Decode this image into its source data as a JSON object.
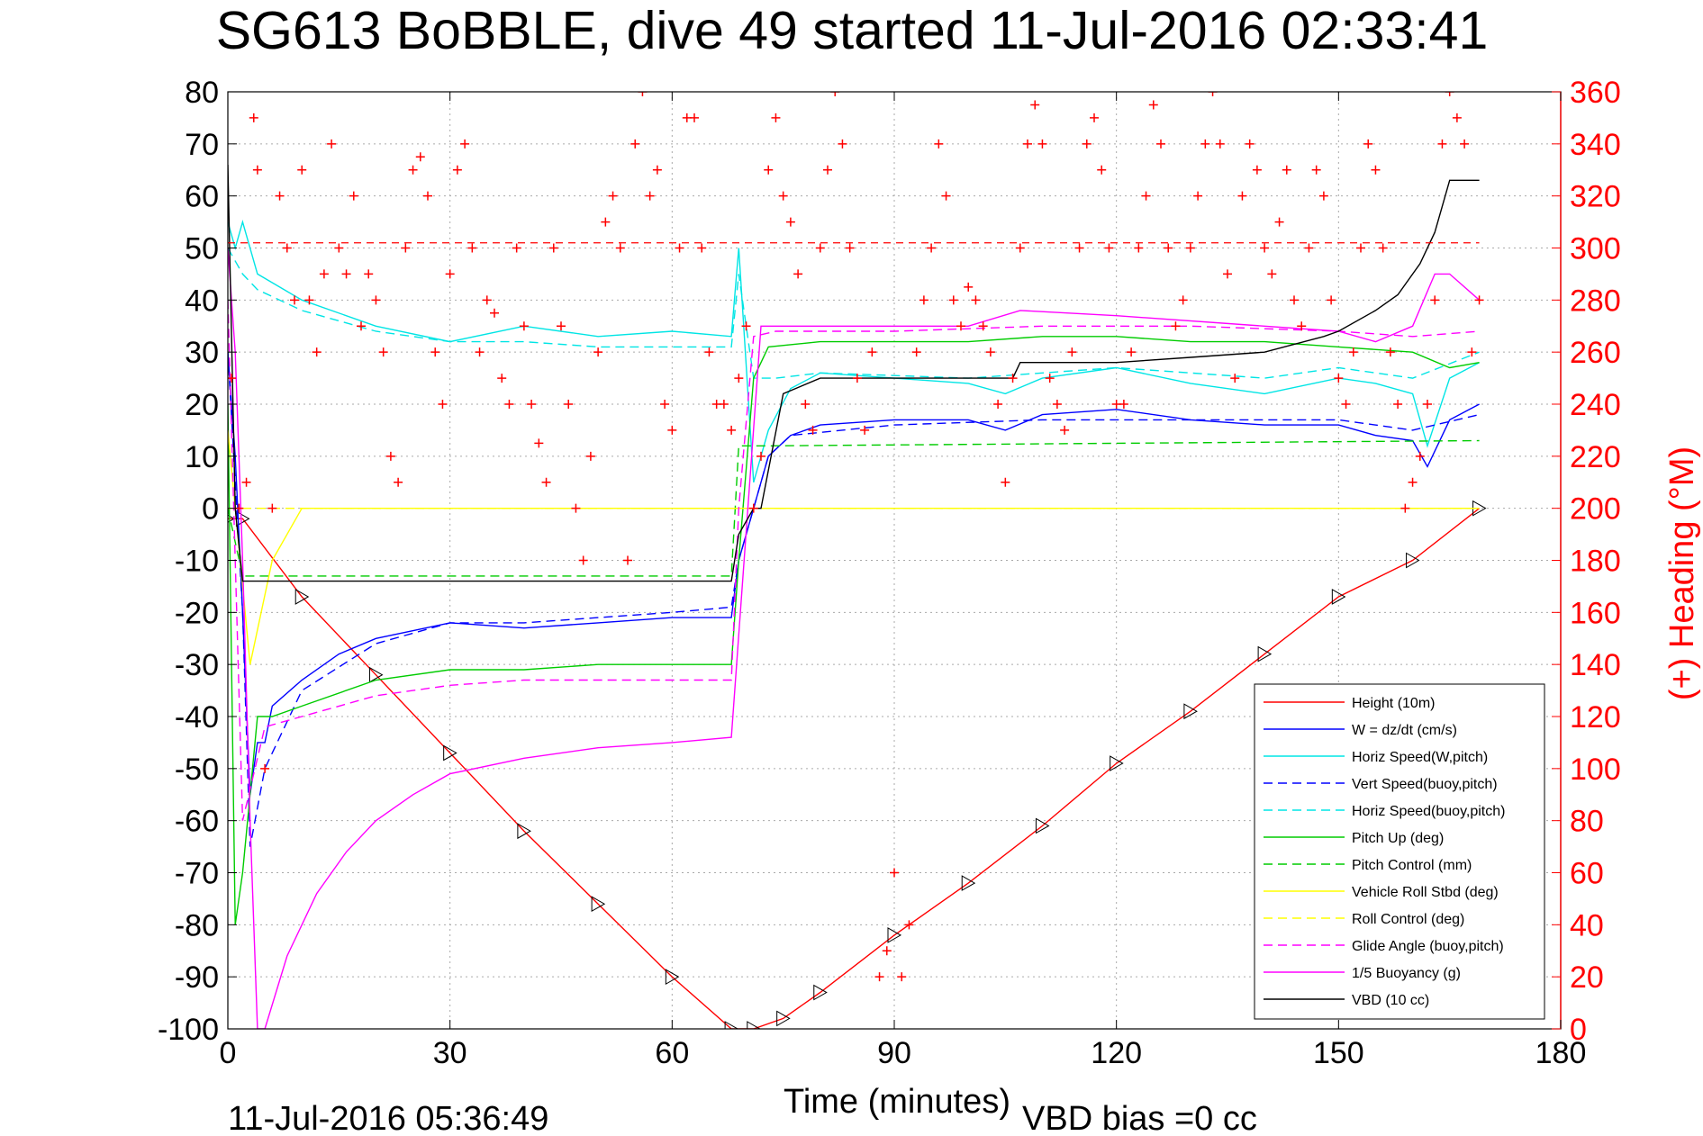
{
  "chart_data": {
    "type": "line",
    "title": "SG613 BoBBLE, dive 49 started 11-Jul-2016 02:33:41",
    "xlabel": "Time (minutes)",
    "ylabel": "",
    "y2label": "(+) Heading (°M)",
    "xlim": [
      0,
      180
    ],
    "ylim": [
      -100,
      80
    ],
    "y2lim": [
      0,
      360
    ],
    "xticks": [
      "0",
      "30",
      "60",
      "90",
      "120",
      "150",
      "180"
    ],
    "yticks": [
      "80",
      "70",
      "60",
      "50",
      "40",
      "30",
      "20",
      "10",
      "0",
      "-10",
      "-20",
      "-30",
      "-40",
      "-50",
      "-60",
      "-70",
      "-80",
      "-90",
      "-100"
    ],
    "y2ticks": [
      "360",
      "340",
      "320",
      "300",
      "280",
      "260",
      "240",
      "220",
      "200",
      "180",
      "160",
      "140",
      "120",
      "100",
      "80",
      "60",
      "40",
      "20",
      "0"
    ],
    "grid": true,
    "legend_position": "bottom-right",
    "footer_left": "11-Jul-2016 05:36:49",
    "footer_right": "VBD bias =0 cc",
    "series": [
      {
        "name": "Height (10m)",
        "color": "#ff0000",
        "style": "solid",
        "x": [
          0,
          2,
          10,
          20,
          30,
          40,
          50,
          60,
          68,
          71,
          75,
          80,
          90,
          100,
          110,
          120,
          130,
          140,
          150,
          160,
          169
        ],
        "y": [
          -2,
          -2,
          -17,
          -32,
          -47,
          -62,
          -76,
          -90,
          -100,
          -100,
          -98,
          -93,
          -82,
          -72,
          -61,
          -49,
          -39,
          -28,
          -17,
          -10,
          0
        ]
      },
      {
        "name": "W = dz/dt (cm/s)",
        "color": "#0000ff",
        "style": "solid",
        "x": [
          0,
          1,
          2,
          3,
          4,
          5,
          6,
          10,
          15,
          20,
          30,
          40,
          50,
          60,
          68,
          69,
          71,
          73,
          76,
          80,
          90,
          100,
          105,
          110,
          120,
          130,
          140,
          150,
          155,
          160,
          162,
          165,
          169
        ],
        "y": [
          30,
          10,
          -20,
          -55,
          -45,
          -45,
          -38,
          -33,
          -28,
          -25,
          -22,
          -23,
          -22,
          -21,
          -21,
          -10,
          0,
          10,
          14,
          16,
          17,
          17,
          15,
          18,
          19,
          17,
          16,
          16,
          14,
          13,
          8,
          17,
          20
        ]
      },
      {
        "name": "Horiz Speed(W,pitch)",
        "color": "#00e5e5",
        "style": "solid",
        "x": [
          0,
          1,
          2,
          4,
          10,
          20,
          30,
          40,
          50,
          60,
          68,
          69,
          71,
          73,
          76,
          80,
          90,
          100,
          105,
          110,
          120,
          130,
          140,
          150,
          155,
          160,
          162,
          165,
          169
        ],
        "y": [
          55,
          50,
          55,
          45,
          40,
          35,
          32,
          35,
          33,
          34,
          33,
          50,
          5,
          15,
          23,
          26,
          25,
          24,
          22,
          25,
          27,
          24,
          22,
          25,
          24,
          22,
          12,
          25,
          28
        ]
      },
      {
        "name": "Vert Speed(buoy,pitch)",
        "color": "#0000ff",
        "style": "dashed",
        "x": [
          0,
          2,
          3,
          5,
          10,
          20,
          30,
          40,
          50,
          60,
          68,
          69,
          71,
          73,
          76,
          90,
          110,
          130,
          150,
          160,
          169
        ],
        "y": [
          30,
          -20,
          -65,
          -50,
          -35,
          -26,
          -22,
          -22,
          -21,
          -20,
          -19,
          -10,
          0,
          10,
          14,
          16,
          17,
          17,
          17,
          15,
          18
        ]
      },
      {
        "name": "Horiz Speed(buoy,pitch)",
        "color": "#00e5e5",
        "style": "dashed",
        "x": [
          0,
          2,
          4,
          10,
          20,
          30,
          40,
          50,
          60,
          68,
          69,
          71,
          74,
          80,
          100,
          120,
          140,
          150,
          160,
          169
        ],
        "y": [
          50,
          45,
          42,
          38,
          34,
          32,
          32,
          31,
          31,
          31,
          45,
          25,
          25,
          26,
          25,
          27,
          25,
          27,
          25,
          30
        ]
      },
      {
        "name": "Pitch Up (deg)",
        "color": "#00cc00",
        "style": "solid",
        "x": [
          0,
          1,
          2,
          4,
          6,
          10,
          20,
          30,
          40,
          50,
          60,
          68,
          69,
          71,
          73,
          80,
          90,
          100,
          110,
          120,
          130,
          140,
          150,
          160,
          165,
          169
        ],
        "y": [
          20,
          -80,
          -70,
          -40,
          -40,
          -38,
          -33,
          -31,
          -31,
          -30,
          -30,
          -30,
          -10,
          25,
          31,
          32,
          32,
          32,
          33,
          33,
          32,
          32,
          31,
          30,
          27,
          28
        ]
      },
      {
        "name": "Pitch Control (mm)",
        "color": "#00cc00",
        "style": "dashed",
        "x": [
          0,
          2,
          4,
          10,
          68,
          69,
          72,
          73,
          169
        ],
        "y": [
          0,
          -13,
          -13,
          -13,
          -13,
          12,
          12,
          12,
          13
        ]
      },
      {
        "name": "Vehicle Roll Stbd (deg)",
        "color": "#ffff00",
        "style": "solid",
        "x": [
          0,
          3,
          6,
          10,
          20,
          30,
          40,
          50,
          60,
          68,
          70,
          75,
          80,
          90,
          100,
          110,
          120,
          130,
          140,
          150,
          160,
          169
        ],
        "y": [
          15,
          -30,
          -10,
          0,
          0,
          0,
          0,
          0,
          0,
          0,
          0,
          0,
          0,
          0,
          0,
          0,
          0,
          0,
          0,
          0,
          0,
          0
        ]
      },
      {
        "name": "Roll Control (deg)",
        "color": "#ffff00",
        "style": "dashed",
        "x": [
          0,
          5,
          10,
          20,
          30,
          40,
          50,
          60,
          68,
          75,
          90,
          110,
          130,
          150,
          169
        ],
        "y": [
          0,
          0,
          0,
          0,
          0,
          0,
          0,
          0,
          0,
          0,
          0,
          0,
          0,
          0,
          0
        ]
      },
      {
        "name": "Glide Angle (buoy,pitch)",
        "color": "#ff00ff",
        "style": "dashed",
        "x": [
          0,
          2,
          5,
          10,
          20,
          30,
          40,
          50,
          60,
          68,
          69,
          71,
          74,
          90,
          110,
          130,
          150,
          160,
          169
        ],
        "y": [
          40,
          -60,
          -42,
          -40,
          -36,
          -34,
          -33,
          -33,
          -33,
          -33,
          0,
          33,
          34,
          34,
          35,
          35,
          34,
          33,
          34
        ]
      },
      {
        "name": "1/5 Buoyancy (g)",
        "color": "#ff00ff",
        "style": "solid",
        "x": [
          0,
          1,
          2,
          3,
          4,
          5,
          8,
          12,
          16,
          20,
          25,
          30,
          40,
          50,
          60,
          68,
          72,
          80,
          100,
          107,
          120,
          140,
          150,
          155,
          160,
          163,
          165,
          169
        ],
        "y": [
          50,
          30,
          -10,
          -60,
          -100,
          -100,
          -86,
          -74,
          -66,
          -60,
          -55,
          -51,
          -48,
          -46,
          -45,
          -44,
          35,
          35,
          35,
          38,
          37,
          35,
          34,
          32,
          35,
          45,
          45,
          40
        ]
      },
      {
        "name": "VBD (10 cc)",
        "color": "#000000",
        "style": "solid",
        "x": [
          0,
          1,
          2,
          3,
          68,
          69,
          71,
          72,
          75,
          80,
          90,
          106,
          107,
          120,
          130,
          140,
          148,
          150,
          155,
          158,
          161,
          163,
          165,
          169
        ],
        "y": [
          66,
          0,
          -14,
          -14,
          -14,
          -5,
          0,
          0,
          22,
          25,
          25,
          25,
          28,
          28,
          29,
          30,
          33,
          34,
          38,
          41,
          47,
          53,
          63,
          63
        ]
      },
      {
        "name": "(+) Heading (°M)",
        "color": "#ff0000",
        "style": "markers",
        "axis": "right",
        "x": [
          0.5,
          1.5,
          2.5,
          3.5,
          4,
          5,
          6,
          7,
          8,
          9,
          10,
          11,
          12,
          13,
          14,
          15,
          16,
          17,
          18,
          19,
          20,
          21,
          22,
          23,
          24,
          25,
          26,
          27,
          28,
          29,
          30,
          31,
          32,
          33,
          34,
          35,
          36,
          37,
          38,
          39,
          40,
          41,
          42,
          43,
          44,
          45,
          46,
          47,
          48,
          49,
          50,
          51,
          52,
          53,
          54,
          55,
          56,
          57,
          58,
          59,
          60,
          61,
          62,
          63,
          64,
          65,
          66,
          67,
          68,
          69,
          70,
          71,
          72,
          73,
          74,
          75,
          76,
          77,
          78,
          79,
          80,
          81,
          82,
          83,
          84,
          85,
          86,
          87,
          88,
          89,
          90,
          91,
          92,
          93,
          94,
          95,
          96,
          97,
          98,
          99,
          100,
          101,
          102,
          103,
          104,
          105,
          106,
          107,
          108,
          109,
          110,
          111,
          112,
          113,
          114,
          115,
          116,
          117,
          118,
          119,
          120,
          121,
          122,
          123,
          124,
          125,
          126,
          127,
          128,
          129,
          130,
          131,
          132,
          133,
          134,
          135,
          136,
          137,
          138,
          139,
          140,
          141,
          142,
          143,
          144,
          145,
          146,
          147,
          148,
          149,
          150,
          151,
          152,
          153,
          154,
          155,
          156,
          157,
          158,
          159,
          160,
          161,
          162,
          163,
          164,
          165,
          166,
          167,
          168,
          169
        ],
        "y": [
          250,
          200,
          210,
          350,
          330,
          100,
          200,
          320,
          300,
          280,
          330,
          280,
          260,
          290,
          340,
          300,
          290,
          320,
          270,
          290,
          280,
          260,
          220,
          210,
          300,
          330,
          335,
          320,
          260,
          240,
          290,
          330,
          340,
          300,
          260,
          280,
          275,
          250,
          240,
          300,
          270,
          240,
          225,
          210,
          300,
          270,
          240,
          200,
          180,
          220,
          260,
          310,
          320,
          300,
          180,
          340,
          360,
          320,
          330,
          240,
          230,
          300,
          350,
          350,
          300,
          260,
          240,
          240,
          230,
          250,
          270,
          200,
          220,
          330,
          350,
          320,
          310,
          290,
          240,
          230,
          300,
          330,
          360,
          340,
          300,
          250,
          230,
          260,
          20,
          30,
          60,
          20,
          40,
          260,
          280,
          300,
          340,
          320,
          280,
          270,
          285,
          280,
          270,
          260,
          240,
          210,
          250,
          300,
          340,
          355,
          340,
          250,
          240,
          230,
          260,
          300,
          340,
          350,
          330,
          300,
          240,
          240,
          260,
          300,
          320,
          355,
          340,
          300,
          270,
          280,
          300,
          320,
          340,
          360,
          340,
          290,
          250,
          320,
          340,
          330,
          300,
          290,
          310,
          330,
          280,
          270,
          300,
          330,
          320,
          280,
          250,
          240,
          260,
          300,
          340,
          330,
          300,
          260,
          240,
          200,
          210,
          220,
          240,
          280,
          340,
          360,
          350,
          340,
          260,
          280
        ]
      }
    ]
  },
  "legend": {
    "items": [
      {
        "label": "Height (10m)",
        "color": "#ff0000",
        "dash": "none"
      },
      {
        "label": "W = dz/dt (cm/s)",
        "color": "#0000ff",
        "dash": "none"
      },
      {
        "label": "Horiz Speed(W,pitch)",
        "color": "#00e5e5",
        "dash": "none"
      },
      {
        "label": "Vert Speed(buoy,pitch)",
        "color": "#0000ff",
        "dash": "dashed"
      },
      {
        "label": "Horiz Speed(buoy,pitch)",
        "color": "#00e5e5",
        "dash": "dashed"
      },
      {
        "label": "Pitch Up (deg)",
        "color": "#00cc00",
        "dash": "none"
      },
      {
        "label": "Pitch Control (mm)",
        "color": "#00cc00",
        "dash": "dashed"
      },
      {
        "label": "Vehicle Roll Stbd (deg)",
        "color": "#ffff00",
        "dash": "none"
      },
      {
        "label": "Roll Control (deg)",
        "color": "#ffff00",
        "dash": "dashed"
      },
      {
        "label": "Glide Angle (buoy,pitch)",
        "color": "#ff00ff",
        "dash": "dashed"
      },
      {
        "label": "1/5 Buoyancy (g)",
        "color": "#ff00ff",
        "dash": "none"
      },
      {
        "label": "VBD (10 cc)",
        "color": "#000000",
        "dash": "none"
      }
    ]
  }
}
